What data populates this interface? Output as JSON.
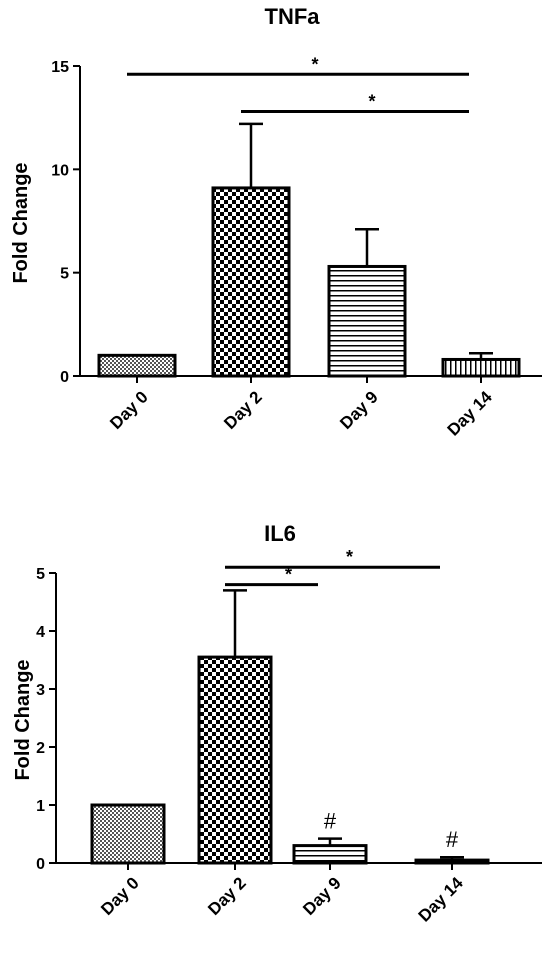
{
  "chart_data": [
    {
      "type": "bar",
      "title": "TNFa",
      "xlabel": "",
      "ylabel": "Fold Change",
      "ylim": [
        0,
        15
      ],
      "yticks": [
        "0",
        "5",
        "10",
        "15"
      ],
      "categories": [
        "Day 0",
        "Day 2",
        "Day 9",
        "Day 14"
      ],
      "values": [
        1.0,
        9.1,
        5.3,
        0.8
      ],
      "error_upper": [
        1.0,
        12.2,
        7.1,
        1.1
      ],
      "patterns": [
        "fine-check",
        "checker",
        "horizontal-lines",
        "vertical-lines"
      ],
      "significance": [
        {
          "from": "Day 0",
          "to": "Day 14",
          "label": "*",
          "y": 14.6
        },
        {
          "from": "Day 2",
          "to": "Day 14",
          "label": "*",
          "y": 12.8
        }
      ],
      "point_labels": [
        "",
        "",
        "",
        ""
      ],
      "grid": false
    },
    {
      "type": "bar",
      "title": "IL6",
      "xlabel": "",
      "ylabel": "Fold Change",
      "ylim": [
        0,
        5
      ],
      "yticks": [
        "0",
        "1",
        "2",
        "3",
        "4",
        "5"
      ],
      "categories": [
        "Day 0",
        "Day 2",
        "Day 9",
        "Day 14"
      ],
      "values": [
        1.0,
        3.55,
        0.3,
        0.05
      ],
      "error_upper": [
        1.0,
        4.7,
        0.42,
        0.1
      ],
      "patterns": [
        "fine-check",
        "checker",
        "horizontal-lines",
        "vertical-lines"
      ],
      "significance": [
        {
          "from": "Day 2",
          "to": "Day 9",
          "label": "*",
          "y": 4.8
        },
        {
          "from": "Day 2",
          "to": "Day 14",
          "label": "*",
          "y": 5.1
        }
      ],
      "point_labels": [
        "",
        "",
        "#",
        "#"
      ],
      "grid": false
    }
  ]
}
